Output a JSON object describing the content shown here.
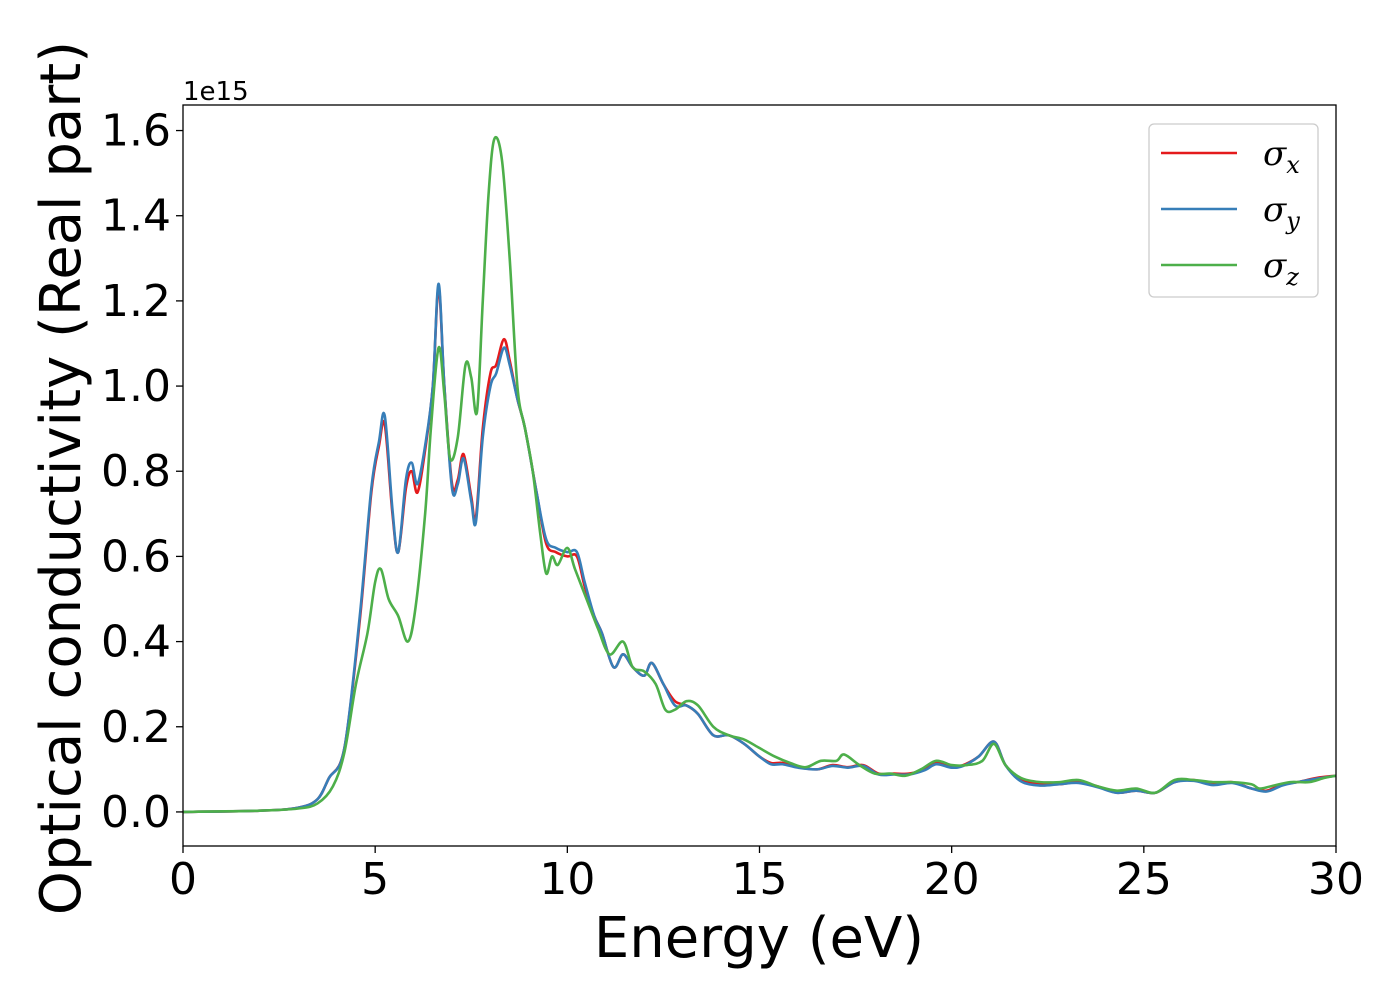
{
  "chart_data": {
    "type": "line",
    "title": "",
    "xlabel": "Energy (eV)",
    "ylabel": "Optical conductivity (Real part)",
    "y_offset_label": "1e15",
    "xlim": [
      0,
      30
    ],
    "ylim": [
      -0.08,
      1.66
    ],
    "x_ticks": [
      0,
      5,
      10,
      15,
      20,
      25,
      30
    ],
    "x_tick_labels": [
      "0",
      "5",
      "10",
      "15",
      "20",
      "25",
      "30"
    ],
    "y_ticks": [
      0.0,
      0.2,
      0.4,
      0.6,
      0.8,
      1.0,
      1.2,
      1.4,
      1.6
    ],
    "y_tick_labels": [
      "0.0",
      "0.2",
      "0.4",
      "0.6",
      "0.8",
      "1.0",
      "1.2",
      "1.4",
      "1.6"
    ],
    "grid": false,
    "legend_position": "top-right",
    "series": [
      {
        "name": "σx",
        "symbol": "σ",
        "subscript": "x",
        "color": "#e41a1c",
        "points": [
          [
            0,
            0
          ],
          [
            2,
            0.003
          ],
          [
            3,
            0.01
          ],
          [
            3.5,
            0.03
          ],
          [
            3.8,
            0.08
          ],
          [
            4.2,
            0.15
          ],
          [
            4.6,
            0.45
          ],
          [
            4.9,
            0.75
          ],
          [
            5.1,
            0.86
          ],
          [
            5.25,
            0.91
          ],
          [
            5.45,
            0.7
          ],
          [
            5.6,
            0.61
          ],
          [
            5.8,
            0.76
          ],
          [
            5.95,
            0.8
          ],
          [
            6.1,
            0.75
          ],
          [
            6.3,
            0.85
          ],
          [
            6.5,
            1.0
          ],
          [
            6.65,
            1.23
          ],
          [
            6.8,
            1.0
          ],
          [
            7.0,
            0.77
          ],
          [
            7.15,
            0.78
          ],
          [
            7.3,
            0.84
          ],
          [
            7.5,
            0.74
          ],
          [
            7.62,
            0.69
          ],
          [
            7.8,
            0.9
          ],
          [
            8.0,
            1.03
          ],
          [
            8.15,
            1.05
          ],
          [
            8.35,
            1.11
          ],
          [
            8.5,
            1.06
          ],
          [
            8.7,
            0.97
          ],
          [
            8.9,
            0.9
          ],
          [
            9.2,
            0.75
          ],
          [
            9.45,
            0.63
          ],
          [
            9.7,
            0.61
          ],
          [
            10.0,
            0.6
          ],
          [
            10.25,
            0.6
          ],
          [
            10.45,
            0.53
          ],
          [
            10.7,
            0.46
          ],
          [
            10.9,
            0.42
          ],
          [
            11.2,
            0.34
          ],
          [
            11.45,
            0.37
          ],
          [
            11.7,
            0.34
          ],
          [
            12.0,
            0.32
          ],
          [
            12.2,
            0.35
          ],
          [
            12.5,
            0.3
          ],
          [
            12.8,
            0.26
          ],
          [
            13.1,
            0.25
          ],
          [
            13.4,
            0.23
          ],
          [
            13.8,
            0.18
          ],
          [
            14.2,
            0.18
          ],
          [
            14.6,
            0.16
          ],
          [
            15.0,
            0.13
          ],
          [
            15.3,
            0.115
          ],
          [
            15.6,
            0.115
          ],
          [
            16.0,
            0.105
          ],
          [
            16.5,
            0.1
          ],
          [
            16.9,
            0.11
          ],
          [
            17.3,
            0.105
          ],
          [
            17.7,
            0.11
          ],
          [
            18.1,
            0.09
          ],
          [
            18.5,
            0.09
          ],
          [
            18.9,
            0.09
          ],
          [
            19.3,
            0.1
          ],
          [
            19.6,
            0.115
          ],
          [
            20.0,
            0.105
          ],
          [
            20.3,
            0.11
          ],
          [
            20.7,
            0.13
          ],
          [
            21.1,
            0.165
          ],
          [
            21.4,
            0.11
          ],
          [
            21.8,
            0.075
          ],
          [
            22.3,
            0.065
          ],
          [
            22.8,
            0.065
          ],
          [
            23.3,
            0.07
          ],
          [
            23.8,
            0.06
          ],
          [
            24.3,
            0.045
          ],
          [
            24.8,
            0.05
          ],
          [
            25.3,
            0.045
          ],
          [
            25.8,
            0.07
          ],
          [
            26.3,
            0.075
          ],
          [
            26.8,
            0.065
          ],
          [
            27.3,
            0.07
          ],
          [
            27.8,
            0.055
          ],
          [
            28.2,
            0.05
          ],
          [
            28.6,
            0.065
          ],
          [
            29.0,
            0.07
          ],
          [
            29.5,
            0.08
          ],
          [
            30.0,
            0.085
          ]
        ]
      },
      {
        "name": "σy",
        "symbol": "σ",
        "subscript": "y",
        "color": "#377eb8",
        "points": [
          [
            0,
            0
          ],
          [
            2,
            0.003
          ],
          [
            3,
            0.01
          ],
          [
            3.5,
            0.03
          ],
          [
            3.8,
            0.08
          ],
          [
            4.2,
            0.15
          ],
          [
            4.6,
            0.46
          ],
          [
            4.9,
            0.76
          ],
          [
            5.1,
            0.87
          ],
          [
            5.25,
            0.93
          ],
          [
            5.45,
            0.71
          ],
          [
            5.6,
            0.61
          ],
          [
            5.8,
            0.78
          ],
          [
            5.95,
            0.82
          ],
          [
            6.1,
            0.77
          ],
          [
            6.3,
            0.86
          ],
          [
            6.5,
            1.0
          ],
          [
            6.65,
            1.24
          ],
          [
            6.8,
            1.0
          ],
          [
            7.0,
            0.76
          ],
          [
            7.15,
            0.77
          ],
          [
            7.3,
            0.83
          ],
          [
            7.5,
            0.73
          ],
          [
            7.62,
            0.68
          ],
          [
            7.8,
            0.88
          ],
          [
            8.0,
            1.0
          ],
          [
            8.15,
            1.03
          ],
          [
            8.35,
            1.09
          ],
          [
            8.5,
            1.05
          ],
          [
            8.7,
            0.97
          ],
          [
            8.9,
            0.9
          ],
          [
            9.2,
            0.75
          ],
          [
            9.45,
            0.64
          ],
          [
            9.7,
            0.62
          ],
          [
            10.0,
            0.61
          ],
          [
            10.25,
            0.61
          ],
          [
            10.45,
            0.54
          ],
          [
            10.7,
            0.46
          ],
          [
            10.9,
            0.42
          ],
          [
            11.2,
            0.34
          ],
          [
            11.45,
            0.37
          ],
          [
            11.7,
            0.34
          ],
          [
            12.0,
            0.32
          ],
          [
            12.2,
            0.35
          ],
          [
            12.5,
            0.3
          ],
          [
            12.8,
            0.25
          ],
          [
            13.1,
            0.25
          ],
          [
            13.4,
            0.23
          ],
          [
            13.8,
            0.18
          ],
          [
            14.2,
            0.18
          ],
          [
            14.6,
            0.16
          ],
          [
            15.0,
            0.13
          ],
          [
            15.3,
            0.112
          ],
          [
            15.6,
            0.112
          ],
          [
            16.0,
            0.104
          ],
          [
            16.5,
            0.1
          ],
          [
            16.9,
            0.108
          ],
          [
            17.3,
            0.104
          ],
          [
            17.7,
            0.108
          ],
          [
            18.1,
            0.088
          ],
          [
            18.5,
            0.088
          ],
          [
            18.9,
            0.088
          ],
          [
            19.3,
            0.098
          ],
          [
            19.6,
            0.112
          ],
          [
            20.0,
            0.104
          ],
          [
            20.3,
            0.108
          ],
          [
            20.7,
            0.13
          ],
          [
            21.1,
            0.165
          ],
          [
            21.4,
            0.11
          ],
          [
            21.8,
            0.072
          ],
          [
            22.3,
            0.062
          ],
          [
            22.8,
            0.065
          ],
          [
            23.3,
            0.068
          ],
          [
            23.8,
            0.058
          ],
          [
            24.3,
            0.045
          ],
          [
            24.8,
            0.05
          ],
          [
            25.3,
            0.045
          ],
          [
            25.8,
            0.07
          ],
          [
            26.3,
            0.073
          ],
          [
            26.8,
            0.063
          ],
          [
            27.3,
            0.068
          ],
          [
            27.8,
            0.055
          ],
          [
            28.2,
            0.048
          ],
          [
            28.6,
            0.062
          ],
          [
            29.0,
            0.07
          ],
          [
            29.5,
            0.078
          ],
          [
            30.0,
            0.085
          ]
        ]
      },
      {
        "name": "σz",
        "symbol": "σ",
        "subscript": "z",
        "color": "#4daf4a",
        "points": [
          [
            0,
            0
          ],
          [
            2,
            0.003
          ],
          [
            3,
            0.008
          ],
          [
            3.5,
            0.02
          ],
          [
            3.9,
            0.06
          ],
          [
            4.2,
            0.14
          ],
          [
            4.5,
            0.3
          ],
          [
            4.8,
            0.42
          ],
          [
            5.0,
            0.54
          ],
          [
            5.15,
            0.57
          ],
          [
            5.35,
            0.5
          ],
          [
            5.6,
            0.46
          ],
          [
            5.85,
            0.4
          ],
          [
            6.05,
            0.48
          ],
          [
            6.3,
            0.7
          ],
          [
            6.45,
            0.9
          ],
          [
            6.65,
            1.09
          ],
          [
            6.8,
            0.98
          ],
          [
            6.95,
            0.83
          ],
          [
            7.15,
            0.88
          ],
          [
            7.35,
            1.05
          ],
          [
            7.5,
            1.02
          ],
          [
            7.65,
            0.94
          ],
          [
            7.8,
            1.2
          ],
          [
            7.95,
            1.45
          ],
          [
            8.1,
            1.58
          ],
          [
            8.3,
            1.53
          ],
          [
            8.5,
            1.3
          ],
          [
            8.7,
            1.0
          ],
          [
            8.9,
            0.9
          ],
          [
            9.1,
            0.8
          ],
          [
            9.3,
            0.65
          ],
          [
            9.45,
            0.56
          ],
          [
            9.6,
            0.6
          ],
          [
            9.75,
            0.58
          ],
          [
            10.0,
            0.62
          ],
          [
            10.2,
            0.57
          ],
          [
            10.5,
            0.5
          ],
          [
            10.8,
            0.43
          ],
          [
            11.1,
            0.37
          ],
          [
            11.45,
            0.4
          ],
          [
            11.7,
            0.34
          ],
          [
            12.0,
            0.33
          ],
          [
            12.3,
            0.3
          ],
          [
            12.55,
            0.24
          ],
          [
            12.8,
            0.24
          ],
          [
            13.1,
            0.26
          ],
          [
            13.4,
            0.25
          ],
          [
            13.8,
            0.2
          ],
          [
            14.2,
            0.18
          ],
          [
            14.6,
            0.17
          ],
          [
            15.0,
            0.15
          ],
          [
            15.4,
            0.13
          ],
          [
            15.8,
            0.115
          ],
          [
            16.2,
            0.105
          ],
          [
            16.6,
            0.12
          ],
          [
            17.0,
            0.12
          ],
          [
            17.2,
            0.135
          ],
          [
            17.6,
            0.11
          ],
          [
            18.0,
            0.09
          ],
          [
            18.4,
            0.09
          ],
          [
            18.8,
            0.085
          ],
          [
            19.2,
            0.1
          ],
          [
            19.6,
            0.12
          ],
          [
            20.0,
            0.11
          ],
          [
            20.4,
            0.11
          ],
          [
            20.8,
            0.12
          ],
          [
            21.1,
            0.16
          ],
          [
            21.4,
            0.11
          ],
          [
            21.8,
            0.08
          ],
          [
            22.3,
            0.07
          ],
          [
            22.8,
            0.07
          ],
          [
            23.3,
            0.075
          ],
          [
            23.8,
            0.06
          ],
          [
            24.3,
            0.05
          ],
          [
            24.8,
            0.055
          ],
          [
            25.3,
            0.045
          ],
          [
            25.8,
            0.075
          ],
          [
            26.3,
            0.075
          ],
          [
            26.8,
            0.07
          ],
          [
            27.3,
            0.07
          ],
          [
            27.8,
            0.065
          ],
          [
            28.0,
            0.055
          ],
          [
            28.3,
            0.06
          ],
          [
            28.8,
            0.07
          ],
          [
            29.3,
            0.07
          ],
          [
            29.7,
            0.08
          ],
          [
            30.0,
            0.085
          ]
        ]
      }
    ]
  }
}
